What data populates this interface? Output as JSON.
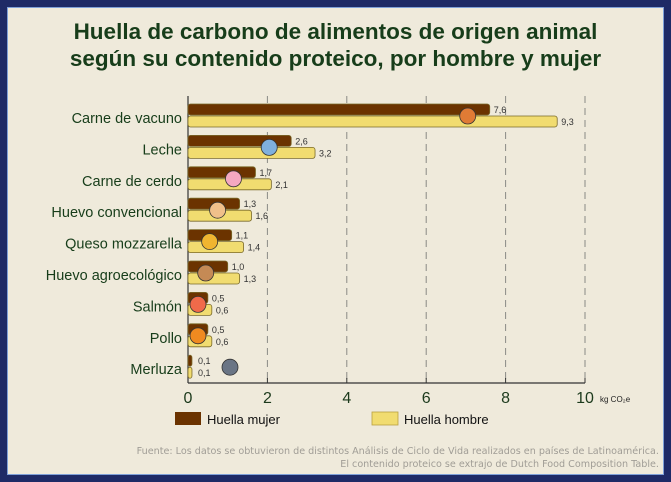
{
  "chart_data": {
    "type": "bar",
    "orientation": "horizontal",
    "title": "Huella de carbono de alimentos de origen animal según su contenido proteico, por hombre y mujer",
    "title_lines": [
      "Huella de carbono de alimentos de origen animal",
      "según su contenido proteico, por hombre y mujer"
    ],
    "categories": [
      "Carne de vacuno",
      "Leche",
      "Carne de cerdo",
      "Huevo convencional",
      "Queso mozzarella",
      "Huevo agroecológico",
      "Salmón",
      "Pollo",
      "Merluza"
    ],
    "icons": [
      "cow-icon",
      "milk-carton-icon",
      "pig-icon",
      "egg-icon",
      "cheese-icon",
      "egg-nest-icon",
      "salmon-icon",
      "chicken-icon",
      "fish-icon"
    ],
    "series": [
      {
        "name": "Huella mujer",
        "color": "#6b3300",
        "values": [
          7.6,
          2.6,
          1.7,
          1.3,
          1.1,
          1.0,
          0.5,
          0.5,
          0.1
        ],
        "labels": [
          "7,6",
          "2,6",
          "1,7",
          "1,3",
          "1,1",
          "1,0",
          "0,5",
          "0,5",
          "0,1"
        ]
      },
      {
        "name": "Huella hombre",
        "color": "#f1dc70",
        "values": [
          9.3,
          3.2,
          2.1,
          1.6,
          1.4,
          1.3,
          0.6,
          0.6,
          0.1
        ],
        "labels": [
          "9,3",
          "3,2",
          "2,1",
          "1,6",
          "1,4",
          "1,3",
          "0,6",
          "0,6",
          "0,1"
        ]
      }
    ],
    "xlim": [
      0,
      10
    ],
    "xticks": [
      0,
      2,
      4,
      6,
      8,
      10
    ],
    "xlabel": "kg CO₂e",
    "grid": "vertical dashed",
    "legend_position": "bottom"
  },
  "source": [
    "Fuente: Los datos se obtuvieron de distintos Análisis de Ciclo de Vida realizados en países de Latinoamérica.",
    "El contenido proteico se extrajo de Dutch Food Composition Table."
  ]
}
